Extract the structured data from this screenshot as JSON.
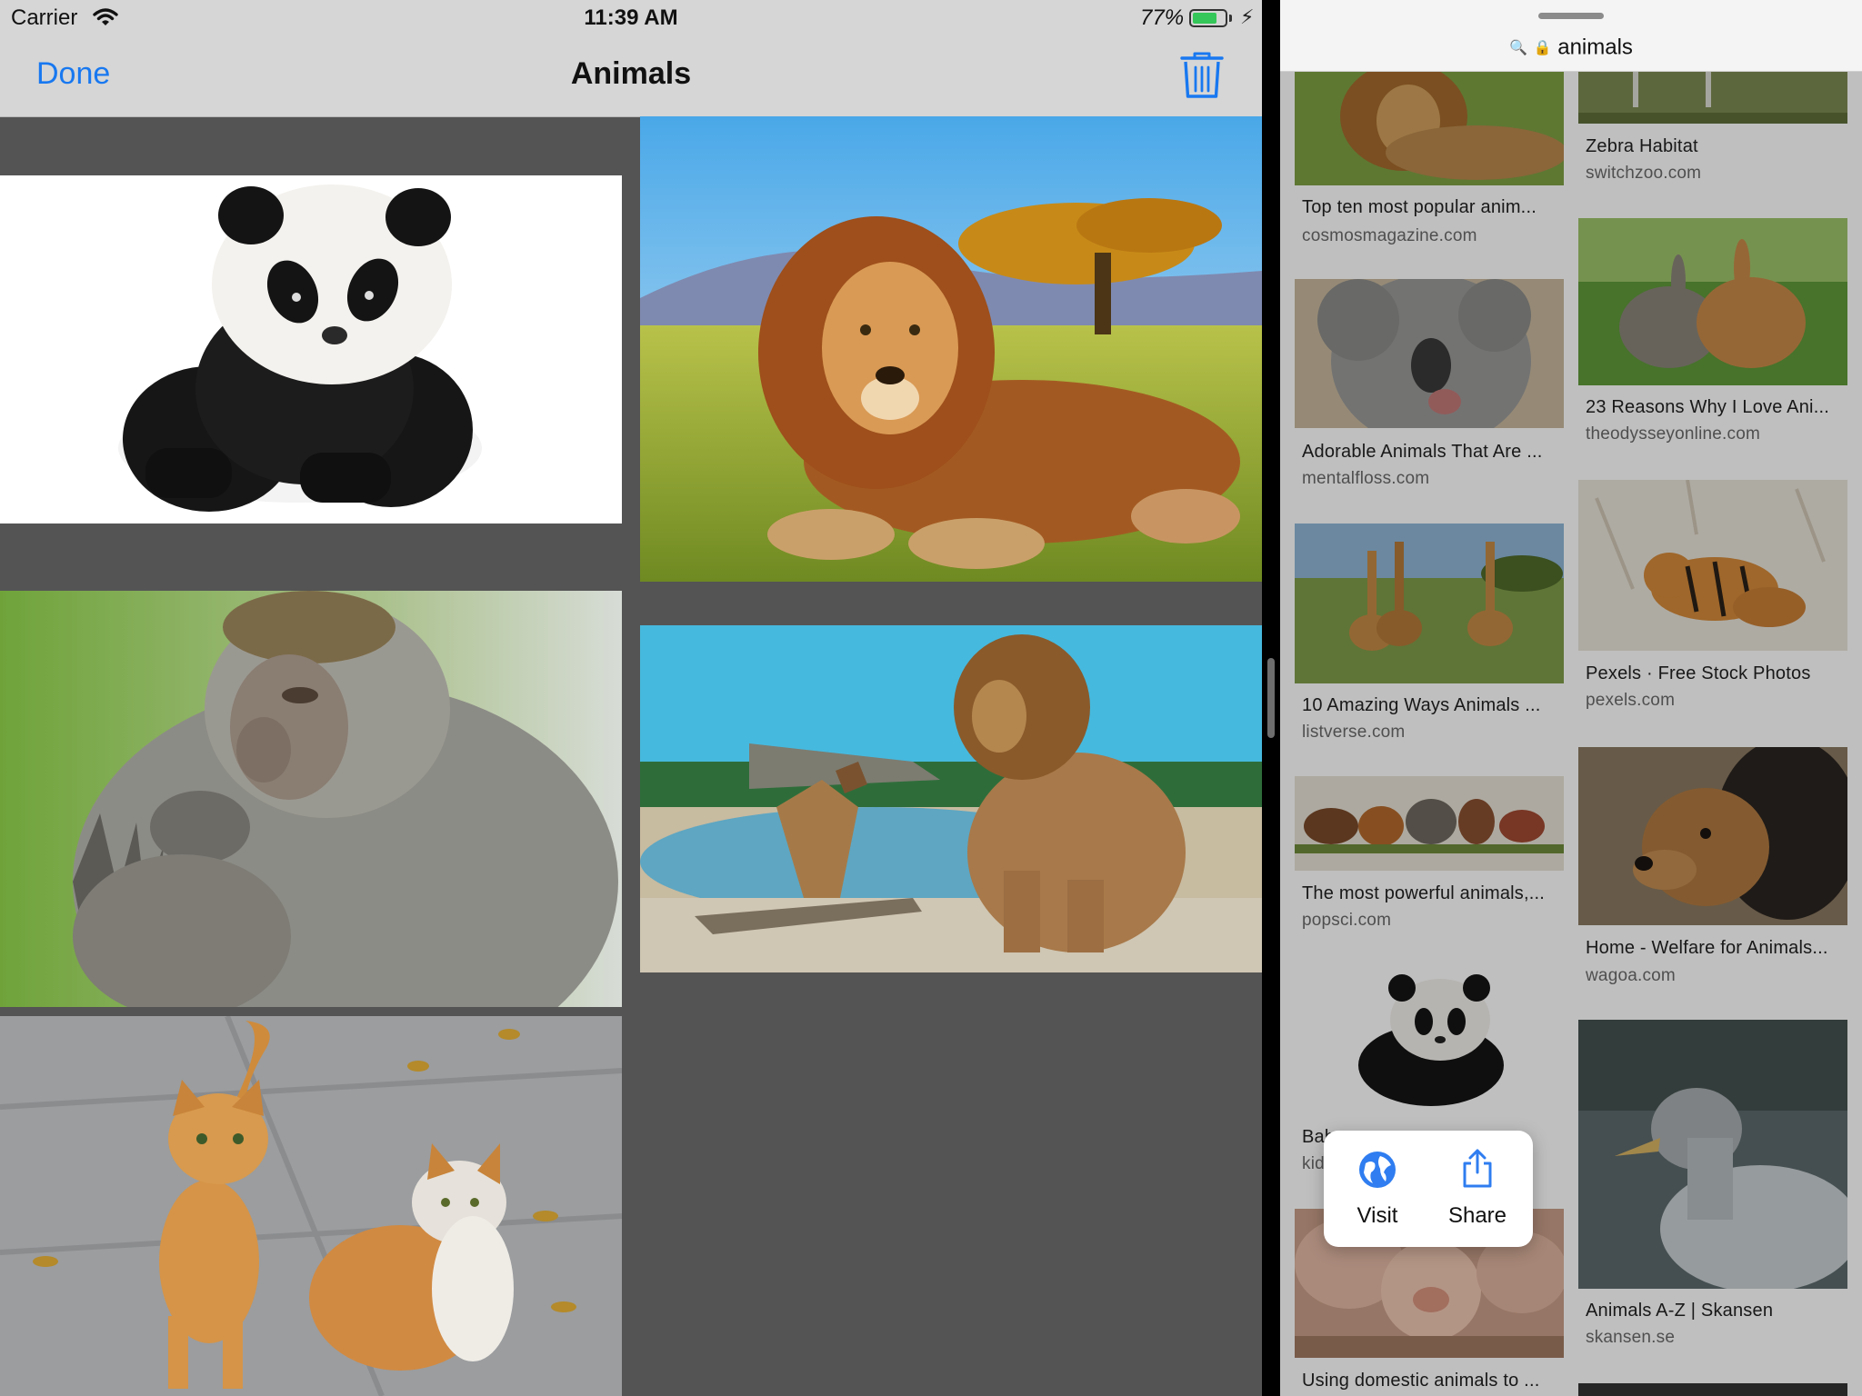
{
  "status_bar": {
    "carrier": "Carrier",
    "time": "11:39 AM",
    "battery_percent": "77%",
    "battery_level": 0.77
  },
  "nav_bar": {
    "done_label": "Done",
    "title": "Animals",
    "trash_icon": "trash-icon"
  },
  "photos": [
    {
      "subject": "panda-cub"
    },
    {
      "subject": "lion-savanna"
    },
    {
      "subject": "macaque"
    },
    {
      "subject": "lion-and-jackal"
    },
    {
      "subject": "two-cats"
    }
  ],
  "browser": {
    "url_text": "animals",
    "results": [
      {
        "title": "Top ten most popular anim...",
        "domain": "cosmosmagazine.com"
      },
      {
        "title": "Zebra Habitat",
        "domain": "switchzoo.com"
      },
      {
        "title": "Adorable Animals That Are ...",
        "domain": "mentalfloss.com"
      },
      {
        "title": "23 Reasons Why I Love Ani...",
        "domain": "theodysseyonline.com"
      },
      {
        "title": "10 Amazing Ways Animals ...",
        "domain": "listverse.com"
      },
      {
        "title": "Pexels · Free Stock Photos",
        "domain": "pexels.com"
      },
      {
        "title": "The most powerful animals,...",
        "domain": "popsci.com"
      },
      {
        "title": "Home - Welfare for Animals...",
        "domain": "wagoa.com"
      },
      {
        "title": "Bab",
        "domain": "kid"
      },
      {
        "title": "Animals A-Z | Skansen",
        "domain": "skansen.se"
      },
      {
        "title": "Using domestic animals to ...",
        "domain": ""
      }
    ],
    "context_menu": {
      "visit_label": "Visit",
      "share_label": "Share"
    }
  },
  "colors": {
    "accent": "#1878f0",
    "nav_background": "#d6d6d6",
    "grid_background": "#545454",
    "battery_green": "#35c759"
  }
}
